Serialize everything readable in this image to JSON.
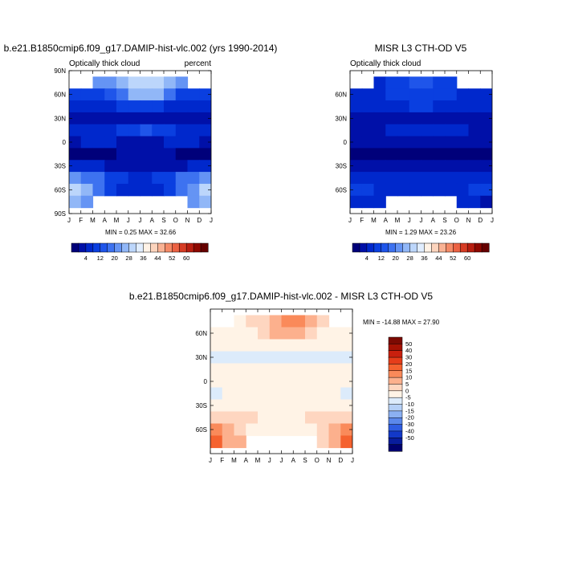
{
  "month_labels": [
    "J",
    "F",
    "M",
    "A",
    "M",
    "J",
    "J",
    "A",
    "S",
    "O",
    "N",
    "D",
    "J"
  ],
  "lat_labels_full": [
    "90N",
    "60N",
    "30N",
    "0",
    "30S",
    "60S",
    "90S"
  ],
  "lat_labels_inner": [
    "60N",
    "30N",
    "0",
    "30S",
    "60S"
  ],
  "chart_data": [
    {
      "type": "heatmap",
      "name": "model",
      "title": "b.e21.B1850cmip6.f09_g17.DAMIP-hist-vlc.002 (yrs 1990-2014)",
      "left_label": "Optically thick cloud",
      "right_label": "percent",
      "stats": "MIN =   0.25 MAX =  32.66",
      "x": "month",
      "y": "latitude",
      "lat": [
        75,
        60,
        45,
        30,
        15,
        0,
        -15,
        -30,
        -45,
        -60,
        -75
      ],
      "months": [
        "J",
        "F",
        "M",
        "A",
        "M",
        "J",
        "J",
        "A",
        "S",
        "O",
        "N",
        "D"
      ],
      "values": [
        [
          null,
          null,
          22,
          24,
          26,
          30,
          32,
          30,
          26,
          22,
          null,
          null
        ],
        [
          12,
          12,
          14,
          16,
          20,
          26,
          28,
          26,
          20,
          14,
          12,
          12
        ],
        [
          8,
          8,
          9,
          10,
          12,
          14,
          14,
          12,
          10,
          8,
          8,
          8
        ],
        [
          7,
          6,
          6,
          5,
          4,
          4,
          4,
          4,
          5,
          6,
          7,
          7
        ],
        [
          8,
          8,
          8,
          10,
          12,
          14,
          15,
          14,
          12,
          10,
          9,
          8
        ],
        [
          7,
          8,
          8,
          8,
          7,
          6,
          6,
          7,
          8,
          8,
          8,
          7
        ],
        [
          3,
          3,
          3,
          3,
          4,
          4,
          4,
          4,
          4,
          3,
          3,
          3
        ],
        [
          8,
          8,
          8,
          7,
          7,
          6,
          6,
          6,
          7,
          7,
          8,
          8
        ],
        [
          22,
          20,
          18,
          14,
          12,
          10,
          10,
          12,
          14,
          18,
          20,
          22
        ],
        [
          30,
          26,
          20,
          14,
          10,
          8,
          8,
          10,
          14,
          20,
          24,
          30
        ],
        [
          28,
          24,
          null,
          null,
          null,
          null,
          null,
          null,
          null,
          null,
          22,
          28
        ]
      ],
      "colorbar": {
        "labels": [
          "4",
          "12",
          "20",
          "28",
          "36",
          "44",
          "52",
          "60"
        ],
        "colors": [
          "#00007a",
          "#0010a8",
          "#0028cc",
          "#0a3fe0",
          "#1f55ea",
          "#3d72f0",
          "#6594f4",
          "#91b7f7",
          "#bcd6fb",
          "#e0edff",
          "#fff2e6",
          "#fcd4bd",
          "#f9b294",
          "#f48a67",
          "#eb6243",
          "#d63c24",
          "#b81e10",
          "#8e0800",
          "#650000"
        ]
      }
    },
    {
      "type": "heatmap",
      "name": "obs",
      "title": "MISR L3 CTH-OD V5",
      "left_label": "Optically thick cloud",
      "stats": "MIN =   1.29 MAX =  23.26",
      "x": "month",
      "y": "latitude",
      "lat": [
        75,
        60,
        45,
        30,
        15,
        0,
        -15,
        -30,
        -45,
        -60,
        -75
      ],
      "months": [
        "J",
        "F",
        "M",
        "A",
        "M",
        "J",
        "J",
        "A",
        "S",
        "O",
        "N",
        "D"
      ],
      "values": [
        [
          null,
          null,
          10,
          12,
          14,
          15,
          15,
          14,
          12,
          null,
          null,
          null
        ],
        [
          10,
          10,
          10,
          11,
          12,
          14,
          14,
          12,
          11,
          10,
          10,
          10
        ],
        [
          9,
          9,
          9,
          9,
          10,
          11,
          11,
          10,
          9,
          9,
          9,
          9
        ],
        [
          6,
          6,
          5,
          5,
          4,
          4,
          4,
          4,
          5,
          5,
          6,
          6
        ],
        [
          7,
          7,
          7,
          8,
          9,
          10,
          10,
          10,
          9,
          8,
          7,
          7
        ],
        [
          7,
          7,
          7,
          7,
          6,
          6,
          6,
          6,
          7,
          7,
          7,
          7
        ],
        [
          3,
          3,
          3,
          3,
          3,
          3,
          3,
          3,
          3,
          3,
          3,
          3
        ],
        [
          7,
          7,
          7,
          6,
          6,
          5,
          5,
          5,
          6,
          6,
          7,
          7
        ],
        [
          10,
          10,
          9,
          9,
          8,
          8,
          8,
          8,
          9,
          9,
          10,
          10
        ],
        [
          11,
          11,
          10,
          10,
          10,
          9,
          9,
          9,
          10,
          10,
          11,
          11
        ],
        [
          8,
          8,
          8,
          null,
          null,
          null,
          null,
          null,
          null,
          8,
          8,
          4
        ]
      ],
      "colorbar": {
        "labels": [
          "4",
          "12",
          "20",
          "28",
          "36",
          "44",
          "52",
          "60"
        ],
        "colors": [
          "#00007a",
          "#0010a8",
          "#0028cc",
          "#0a3fe0",
          "#1f55ea",
          "#3d72f0",
          "#6594f4",
          "#91b7f7",
          "#bcd6fb",
          "#e0edff",
          "#fff2e6",
          "#fcd4bd",
          "#f9b294",
          "#f48a67",
          "#eb6243",
          "#d63c24",
          "#b81e10",
          "#8e0800",
          "#650000"
        ]
      }
    },
    {
      "type": "heatmap",
      "name": "diff",
      "title": "b.e21.B1850cmip6.f09_g17.DAMIP-hist-vlc.002 - MISR L3 CTH-OD V5",
      "stats": "MIN = -14.88 MAX =  27.90",
      "x": "month",
      "y": "latitude",
      "lat": [
        75,
        60,
        45,
        30,
        15,
        0,
        -15,
        -30,
        -45,
        -60,
        -75
      ],
      "months": [
        "J",
        "F",
        "M",
        "A",
        "M",
        "J",
        "J",
        "A",
        "S",
        "O",
        "N",
        "D"
      ],
      "values": [
        [
          null,
          null,
          4,
          6,
          8,
          14,
          18,
          18,
          10,
          6,
          null,
          null
        ],
        [
          2,
          2,
          3,
          4,
          6,
          10,
          14,
          12,
          6,
          3,
          2,
          2
        ],
        [
          0,
          0,
          0,
          1,
          1,
          2,
          2,
          1,
          0,
          0,
          0,
          0
        ],
        [
          -2,
          -2,
          -2,
          -2,
          -2,
          -2,
          -2,
          -2,
          -2,
          -2,
          -2,
          -2
        ],
        [
          1,
          1,
          1,
          1,
          2,
          2,
          3,
          2,
          1,
          1,
          1,
          1
        ],
        [
          1,
          1,
          1,
          1,
          1,
          0,
          0,
          1,
          1,
          1,
          1,
          1
        ],
        [
          -1,
          0,
          0,
          0,
          1,
          1,
          1,
          1,
          0,
          0,
          0,
          -1
        ],
        [
          0,
          0,
          1,
          1,
          1,
          1,
          1,
          1,
          1,
          1,
          0,
          0
        ],
        [
          8,
          8,
          6,
          5,
          4,
          3,
          3,
          4,
          5,
          6,
          8,
          8
        ],
        [
          16,
          12,
          8,
          4,
          2,
          0,
          0,
          2,
          4,
          8,
          10,
          16
        ],
        [
          20,
          14,
          10,
          null,
          null,
          null,
          null,
          null,
          null,
          6,
          12,
          24
        ]
      ],
      "colorbar": {
        "labels": [
          "50",
          "40",
          "30",
          "20",
          "15",
          "10",
          "5",
          "0",
          "-5",
          "-10",
          "-15",
          "-20",
          "-30",
          "-40",
          "-50"
        ],
        "colors": [
          "#7c0a02",
          "#a51203",
          "#c9200e",
          "#e63d1a",
          "#f5622f",
          "#fa8a5a",
          "#fcb08d",
          "#fed6c0",
          "#fff3e6",
          "#dcebfb",
          "#b5d0f7",
          "#8bb0f2",
          "#5b88eb",
          "#2f5de2",
          "#1238c8",
          "#081c9c",
          "#00006e"
        ]
      }
    }
  ]
}
